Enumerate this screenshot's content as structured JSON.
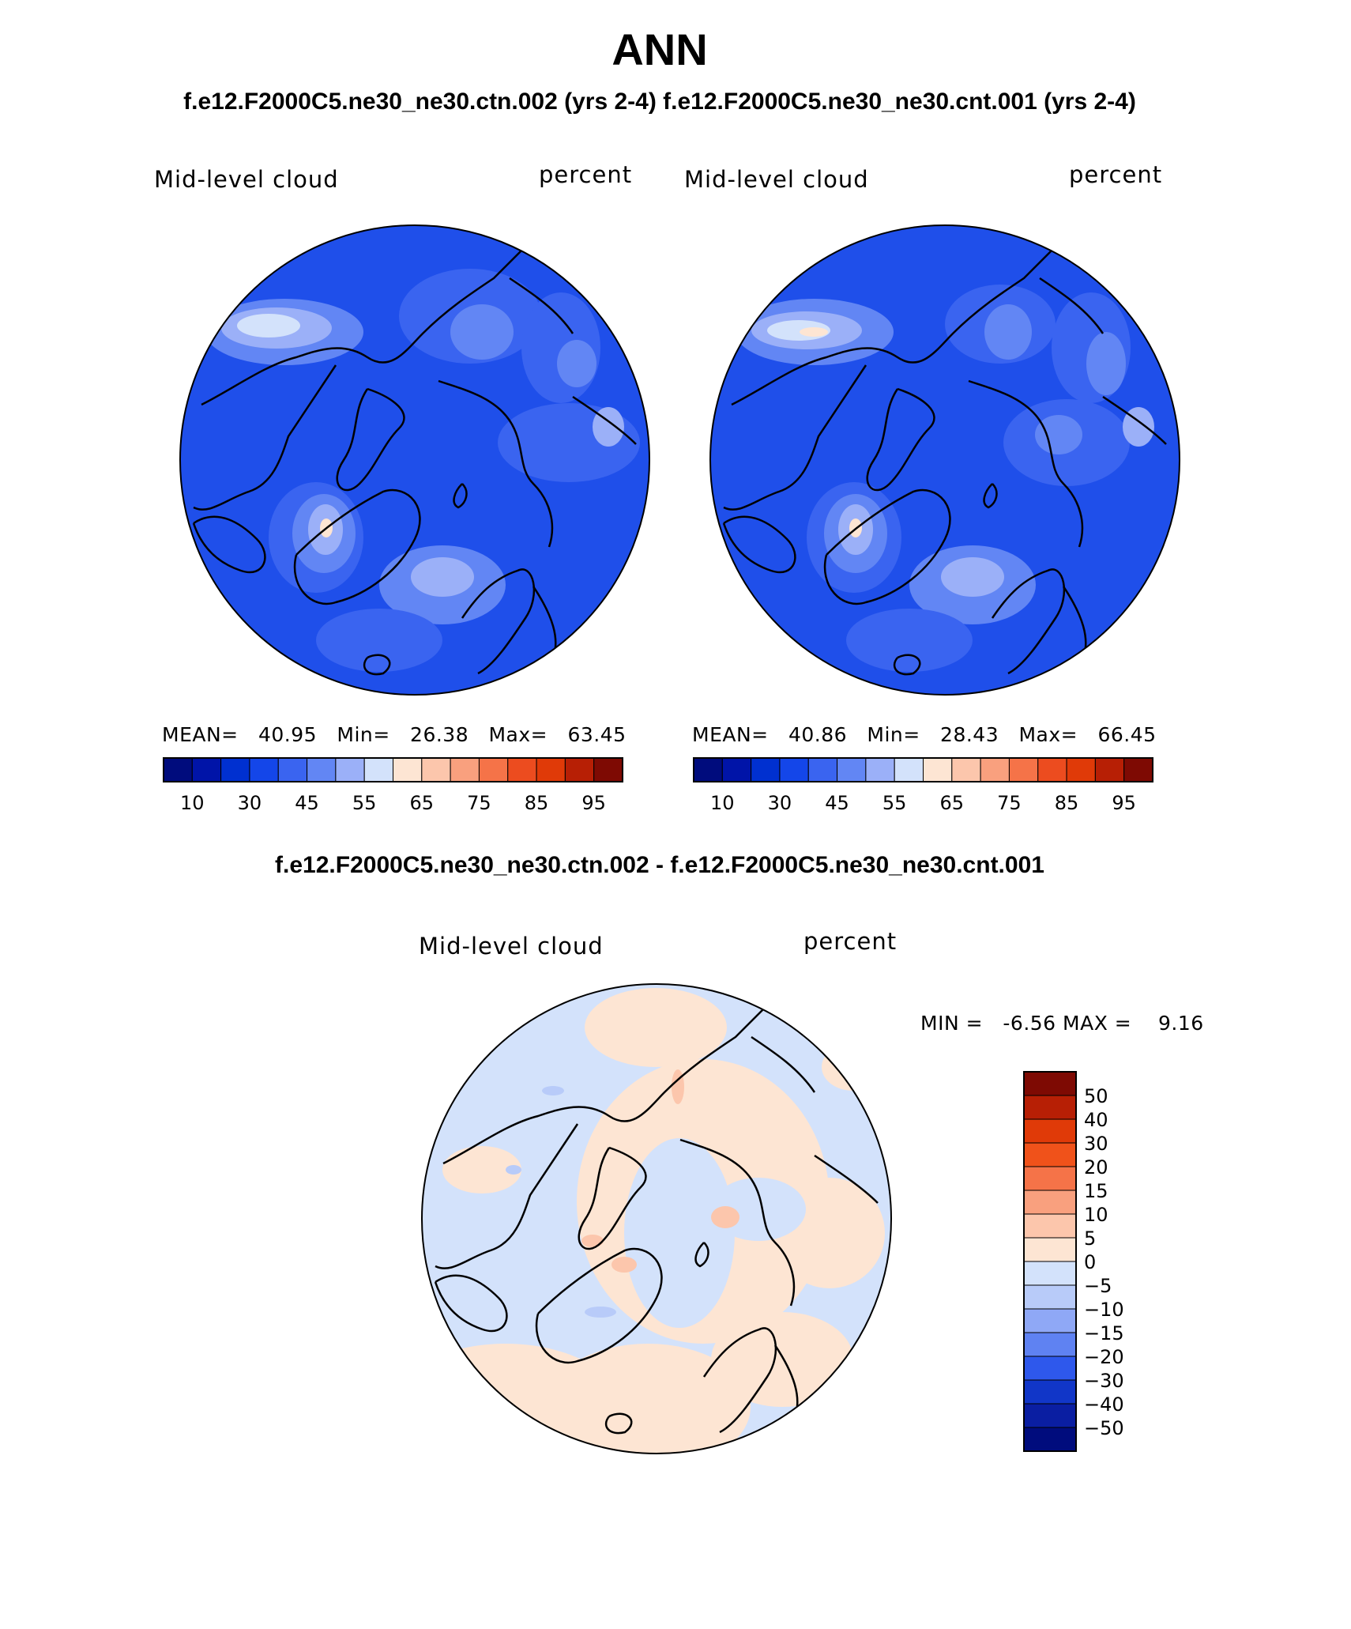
{
  "title": "ANN",
  "subtitle": "f.e12.F2000C5.ne30_ne30.ctn.002 (yrs 2-4) f.e12.F2000C5.ne30_ne30.cnt.001 (yrs 2-4)",
  "diff_title": "f.e12.F2000C5.ne30_ne30.ctn.002 - f.e12.F2000C5.ne30_ne30.cnt.001",
  "chart_data": [
    {
      "type": "heatmap",
      "projection": "north-polar-stereographic",
      "case": "f.e12.F2000C5.ne30_ne30.ctn.002 (yrs 2-4)",
      "variable": "Mid-level cloud",
      "units": "percent",
      "stats": {
        "mean_label": "MEAN=",
        "mean": "40.95",
        "min_label": "Min=",
        "min": "26.38",
        "max_label": "Max=",
        "max": "63.45"
      },
      "colorbar": {
        "orientation": "horizontal",
        "tick_labels": [
          "10",
          "30",
          "45",
          "55",
          "65",
          "75",
          "85",
          "95"
        ],
        "colors": [
          "#000c7d",
          "#0014a8",
          "#0030d0",
          "#1446e9",
          "#3a64f0",
          "#6286f4",
          "#9bb0f8",
          "#d3e2fb",
          "#fde5d3",
          "#fcc6ac",
          "#f9a07e",
          "#f57348",
          "#ec4c1f",
          "#e03a08",
          "#b71f05",
          "#7e0a03"
        ]
      }
    },
    {
      "type": "heatmap",
      "projection": "north-polar-stereographic",
      "case": "f.e12.F2000C5.ne30_ne30.cnt.001 (yrs 2-4)",
      "variable": "Mid-level cloud",
      "units": "percent",
      "stats": {
        "mean_label": "MEAN=",
        "mean": "40.86",
        "min_label": "Min=",
        "min": "28.43",
        "max_label": "Max=",
        "max": "66.45"
      },
      "colorbar": {
        "orientation": "horizontal",
        "tick_labels": [
          "10",
          "30",
          "45",
          "55",
          "65",
          "75",
          "85",
          "95"
        ],
        "colors": [
          "#000c7d",
          "#0014a8",
          "#0030d0",
          "#1446e9",
          "#3a64f0",
          "#6286f4",
          "#9bb0f8",
          "#d3e2fb",
          "#fde5d3",
          "#fcc6ac",
          "#f9a07e",
          "#f57348",
          "#ec4c1f",
          "#e03a08",
          "#b71f05",
          "#7e0a03"
        ]
      }
    },
    {
      "type": "heatmap",
      "projection": "north-polar-stereographic",
      "case": "difference",
      "variable": "Mid-level cloud",
      "units": "percent",
      "stats": {
        "min_label": "MIN =",
        "min": "-6.56",
        "max_label": "MAX =",
        "max": "9.16"
      },
      "colorbar": {
        "orientation": "vertical",
        "tick_labels": [
          "50",
          "40",
          "30",
          "20",
          "15",
          "10",
          "5",
          "0",
          "−5",
          "−10",
          "−15",
          "−20",
          "−30",
          "−40",
          "−50"
        ],
        "colors": [
          "#7e0a03",
          "#b71f05",
          "#e03a08",
          "#f0521a",
          "#f57348",
          "#f9a07e",
          "#fcc6ac",
          "#fde5d3",
          "#d3e2fb",
          "#b8cbf9",
          "#8fa8f6",
          "#5f82f2",
          "#2e58ec",
          "#1136c8",
          "#0a1ea2",
          "#000c7d"
        ]
      }
    }
  ]
}
